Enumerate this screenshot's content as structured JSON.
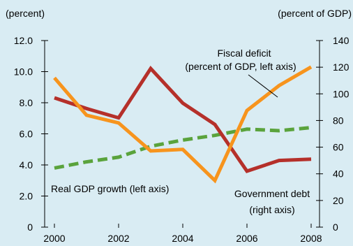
{
  "chart_data": {
    "type": "line",
    "x": [
      2000,
      2001,
      2002,
      2003,
      2004,
      2005,
      2006,
      2007,
      2008
    ],
    "x_ticks": [
      "2000",
      "2002",
      "2004",
      "2006",
      "2008"
    ],
    "left_axis": {
      "unit_label": "(percent)",
      "ylim": [
        0,
        12
      ],
      "ticks": [
        "0",
        "2.0",
        "4.0",
        "6.0",
        "8.0",
        "10.0",
        "12.0"
      ]
    },
    "right_axis": {
      "unit_label": "(percent of GDP)",
      "ylim": [
        0,
        140
      ],
      "ticks": [
        "0",
        "20",
        "40",
        "60",
        "80",
        "100",
        "120",
        "140"
      ]
    },
    "series": [
      {
        "name": "Fiscal deficit (percent of GDP, left axis)",
        "axis": "left",
        "color": "#f7941d",
        "style": "solid",
        "values": [
          9.6,
          7.2,
          6.7,
          4.9,
          5.0,
          3.0,
          7.5,
          9.1,
          10.3
        ]
      },
      {
        "name": "Government debt (right axis)",
        "axis": "right",
        "color": "#b5302a",
        "style": "solid",
        "values": [
          97,
          89,
          82,
          119,
          93,
          77,
          42,
          50,
          51
        ]
      },
      {
        "name": "Real GDP growth (left axis)",
        "axis": "left",
        "color": "#5aa33c",
        "style": "dashed",
        "values": [
          3.8,
          4.2,
          4.5,
          5.2,
          5.6,
          5.9,
          6.3,
          6.2,
          6.4
        ]
      }
    ],
    "annotations": {
      "fiscal_line1": "Fiscal deficit",
      "fiscal_line2": "(percent of GDP, left axis)",
      "gdp": "Real GDP growth (left axis)",
      "debt_line1": "Government debt",
      "debt_line2": "(right axis)"
    },
    "grid": false,
    "legend": "inline annotations"
  }
}
